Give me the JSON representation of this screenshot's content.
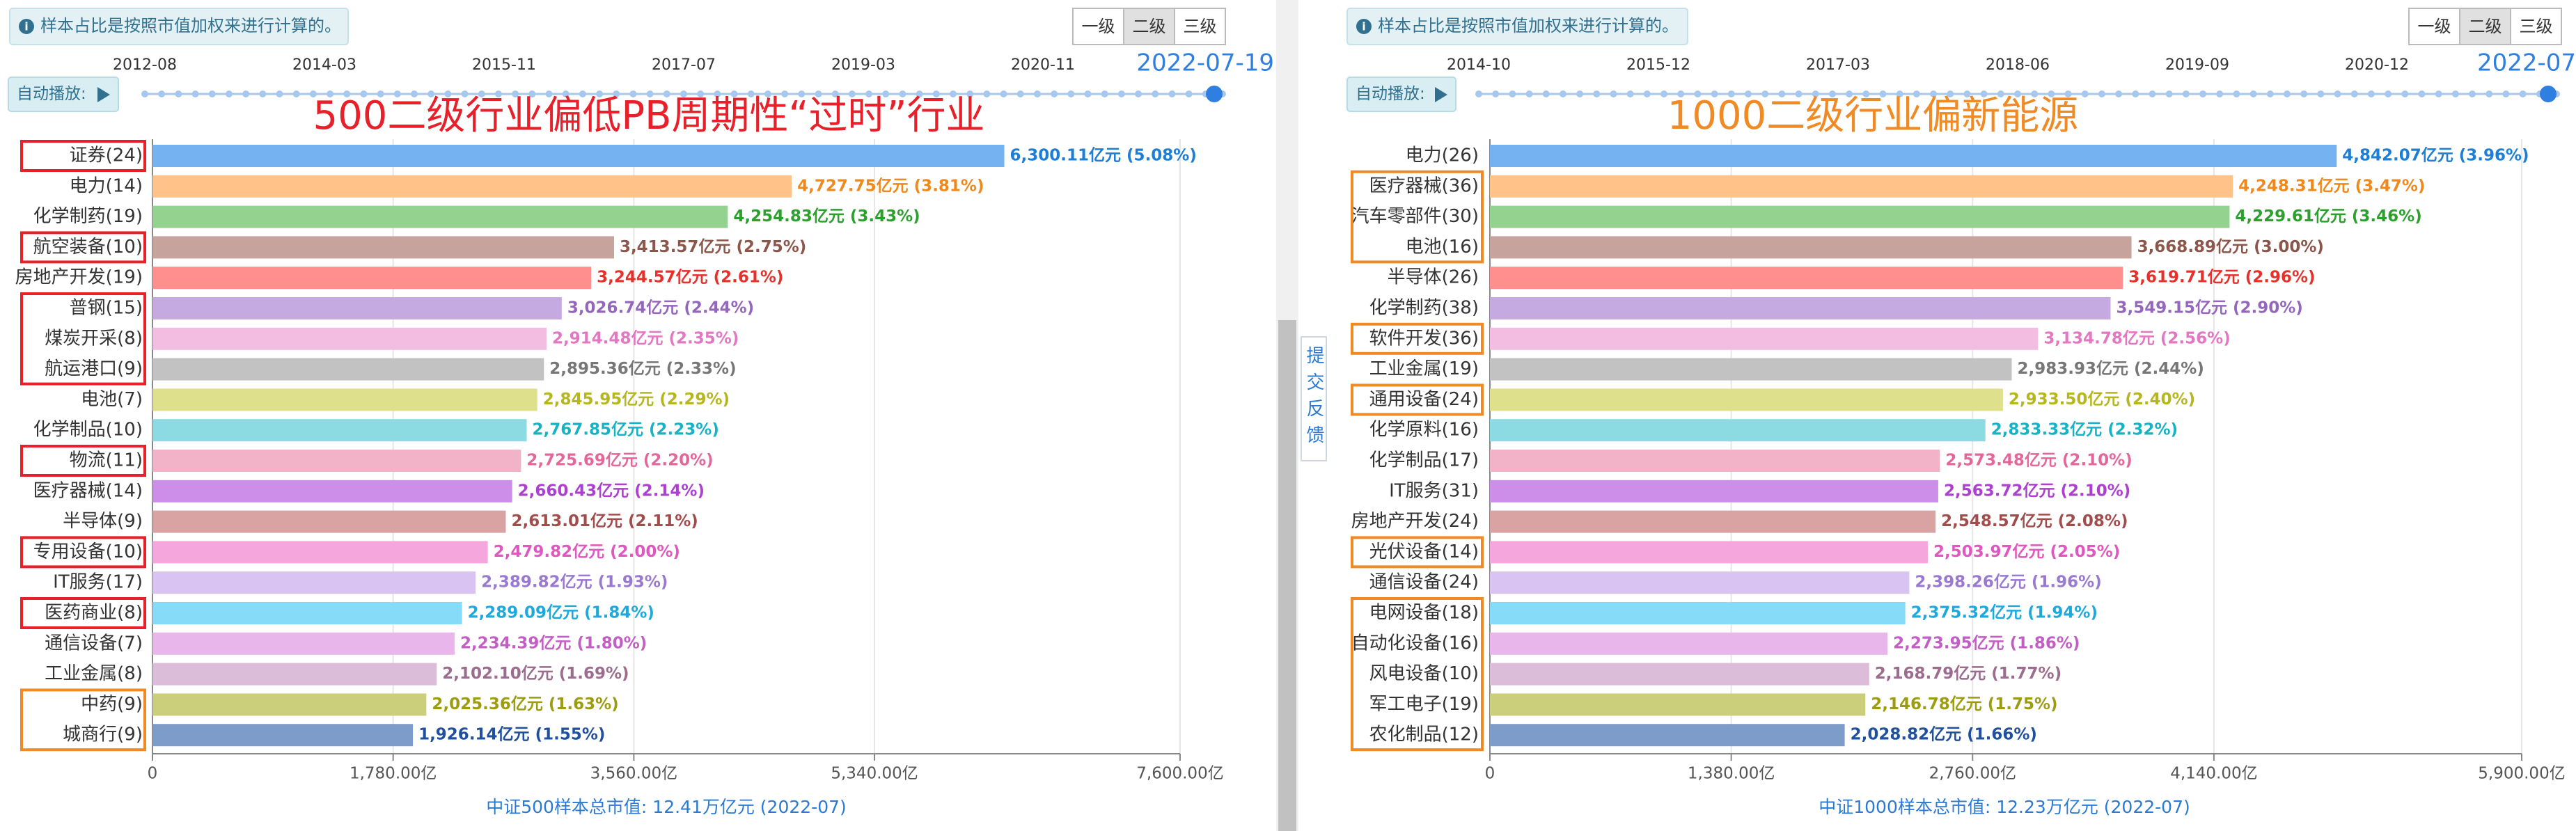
{
  "chart_data": [
    {
      "type": "bar",
      "orientation": "horizontal",
      "notice": "样本占比是按照市值加权来进行计算的。",
      "level_buttons": [
        "一级",
        "二级",
        "三级"
      ],
      "autoplay_label": "自动播放:",
      "timeline_labels": [
        "2012-08",
        "2014-03",
        "2015-11",
        "2017-07",
        "2019-03",
        "2020-11"
      ],
      "current_date": "2022-07-19",
      "title": "500二级行业偏低PB周期性“过时”行业",
      "title_color": "#e8202a",
      "categories": [
        "证券(24)",
        "电力(14)",
        "化学制药(19)",
        "航空装备(10)",
        "房地产开发(19)",
        "普钢(15)",
        "煤炭开采(8)",
        "航运港口(9)",
        "电池(7)",
        "化学制品(10)",
        "物流(11)",
        "医疗器械(14)",
        "半导体(9)",
        "专用设备(10)",
        "IT服务(17)",
        "医药商业(8)",
        "通信设备(7)",
        "工业金属(8)",
        "中药(9)",
        "城商行(9)"
      ],
      "values": [
        6300.11,
        4727.75,
        4254.83,
        3413.57,
        3244.57,
        3026.74,
        2914.48,
        2895.36,
        2845.95,
        2767.85,
        2725.69,
        2660.43,
        2613.01,
        2479.82,
        2389.82,
        2289.09,
        2234.39,
        2102.1,
        2025.36,
        1926.14
      ],
      "value_labels": [
        "6,300.11亿元 (5.08%)",
        "4,727.75亿元 (3.81%)",
        "4,254.83亿元 (3.43%)",
        "3,413.57亿元 (2.75%)",
        "3,244.57亿元 (2.61%)",
        "3,026.74亿元 (2.44%)",
        "2,914.48亿元 (2.35%)",
        "2,895.36亿元 (2.33%)",
        "2,845.95亿元 (2.29%)",
        "2,767.85亿元 (2.23%)",
        "2,725.69亿元 (2.20%)",
        "2,660.43亿元 (2.14%)",
        "2,613.01亿元 (2.11%)",
        "2,479.82亿元 (2.00%)",
        "2,389.82亿元 (1.93%)",
        "2,289.09亿元 (1.84%)",
        "2,234.39亿元 (1.80%)",
        "2,102.10亿元 (1.69%)",
        "2,025.36亿元 (1.63%)",
        "1,926.14亿元 (1.55%)"
      ],
      "colors": [
        "#74b2f2",
        "#ffc389",
        "#94d38f",
        "#c6a39c",
        "#ff8e8e",
        "#c4aae0",
        "#f3bde2",
        "#c2c2c2",
        "#dfe08c",
        "#8cdbe3",
        "#f2b3c9",
        "#cd8ee9",
        "#d9a3a3",
        "#f5a6dc",
        "#d9c3f2",
        "#86dbf8",
        "#e8b6ea",
        "#dbbcd9",
        "#cbce7a",
        "#7e9cca"
      ],
      "label_colors": [
        "#1c7ed6",
        "#f0891b",
        "#2ca02c",
        "#8c564b",
        "#e8302a",
        "#9467bd",
        "#e377c2",
        "#777777",
        "#b5b620",
        "#17b3c4",
        "#e3679a",
        "#ae3fd0",
        "#a34c4c",
        "#e058be",
        "#9a7ad0",
        "#1ea9dd",
        "#c25ec4",
        "#9c6c8e",
        "#9c9c10",
        "#1f4f9f"
      ],
      "xlim": [
        0,
        7600
      ],
      "xticks": [
        0,
        {
          "value": 1780,
          "label": "1,780.00亿"
        },
        {
          "value": 3560,
          "label": "3,560.00亿"
        },
        {
          "value": 5340,
          "label": "5,340.00亿"
        },
        {
          "value": 7600,
          "label": "7,600.00亿"
        }
      ],
      "grid": true,
      "footer": "中证500样本总市值: 12.41万亿元 (2022-07)"
    },
    {
      "type": "bar",
      "orientation": "horizontal",
      "notice": "样本占比是按照市值加权来进行计算的。",
      "level_buttons": [
        "一级",
        "二级",
        "三级"
      ],
      "autoplay_label": "自动播放:",
      "timeline_labels": [
        "2014-10",
        "2015-12",
        "2017-03",
        "2018-06",
        "2019-09",
        "2020-12"
      ],
      "current_date": "2022-07",
      "title": "1000二级行业偏新能源",
      "title_color": "#f08a24",
      "categories": [
        "电力(26)",
        "医疗器械(36)",
        "汽车零部件(30)",
        "电池(16)",
        "半导体(26)",
        "化学制药(38)",
        "软件开发(36)",
        "工业金属(19)",
        "通用设备(24)",
        "化学原料(16)",
        "化学制品(17)",
        "IT服务(31)",
        "房地产开发(24)",
        "光伏设备(14)",
        "通信设备(24)",
        "电网设备(18)",
        "自动化设备(16)",
        "风电设备(10)",
        "军工电子(19)",
        "农化制品(12)"
      ],
      "values": [
        4842.07,
        4248.31,
        4229.61,
        3668.89,
        3619.71,
        3549.15,
        3134.78,
        2983.93,
        2933.5,
        2833.33,
        2573.48,
        2563.72,
        2548.57,
        2503.97,
        2398.26,
        2375.32,
        2273.95,
        2168.79,
        2146.78,
        2028.82
      ],
      "value_labels": [
        "4,842.07亿元 (3.96%)",
        "4,248.31亿元 (3.47%)",
        "4,229.61亿元 (3.46%)",
        "3,668.89亿元 (3.00%)",
        "3,619.71亿元 (2.96%)",
        "3,549.15亿元 (2.90%)",
        "3,134.78亿元 (2.56%)",
        "2,983.93亿元 (2.44%)",
        "2,933.50亿元 (2.40%)",
        "2,833.33亿元 (2.32%)",
        "2,573.48亿元 (2.10%)",
        "2,563.72亿元 (2.10%)",
        "2,548.57亿元 (2.08%)",
        "2,503.97亿元 (2.05%)",
        "2,398.26亿元 (1.96%)",
        "2,375.32亿元 (1.94%)",
        "2,273.95亿元 (1.86%)",
        "2,168.79亿元 (1.77%)",
        "2,146.78亿元 (1.75%)",
        "2,028.82亿元 (1.66%)"
      ],
      "colors": [
        "#74b2f2",
        "#ffc389",
        "#94d38f",
        "#c6a39c",
        "#ff8e8e",
        "#c4aae0",
        "#f3bde2",
        "#c2c2c2",
        "#dfe08c",
        "#8cdbe3",
        "#f2b3c9",
        "#cd8ee9",
        "#d9a3a3",
        "#f5a6dc",
        "#d9c3f2",
        "#86dbf8",
        "#e8b6ea",
        "#dbbcd9",
        "#cbce7a",
        "#7e9cca"
      ],
      "label_colors": [
        "#1c7ed6",
        "#f0891b",
        "#2ca02c",
        "#8c564b",
        "#e8302a",
        "#9467bd",
        "#e377c2",
        "#777777",
        "#b5b620",
        "#17b3c4",
        "#e3679a",
        "#ae3fd0",
        "#a34c4c",
        "#e058be",
        "#9a7ad0",
        "#1ea9dd",
        "#c25ec4",
        "#9c6c8e",
        "#9c9c10",
        "#1f4f9f"
      ],
      "xlim": [
        0,
        5900
      ],
      "xticks": [
        0,
        {
          "value": 1380,
          "label": "1,380.00亿"
        },
        {
          "value": 2760,
          "label": "2,760.00亿"
        },
        {
          "value": 4140,
          "label": "4,140.00亿"
        },
        {
          "value": 5900,
          "label": "5,900.00亿"
        }
      ],
      "grid": true,
      "footer": "中证1000样本总市值: 12.23万亿元 (2022-07)"
    }
  ],
  "feedback": "提交反馈"
}
